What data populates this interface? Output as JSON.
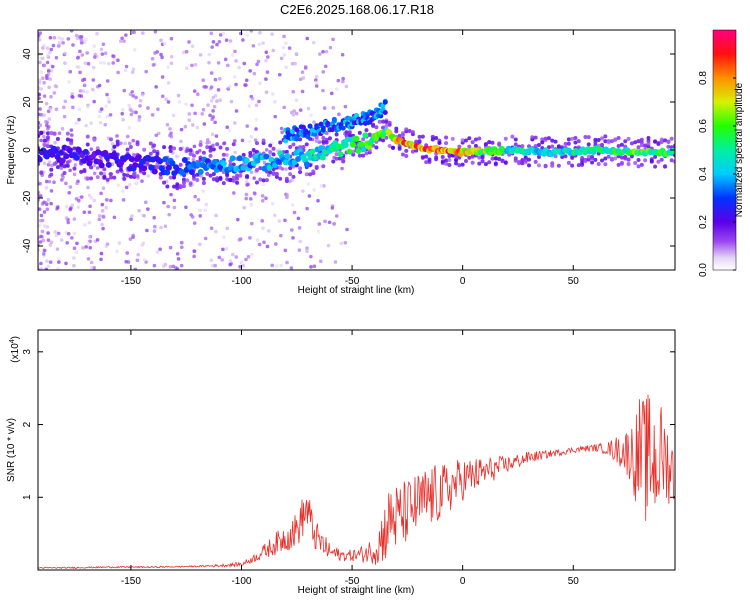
{
  "figure_title": "C2E6.2025.168.06.17.R18",
  "chart_data": [
    {
      "type": "heatmap",
      "title": "C2E6.2025.168.06.17.R18",
      "xlabel": "Height of straight line (km)",
      "ylabel": "Frequency (Hz)",
      "xlim": [
        -192,
        96
      ],
      "ylim": [
        -50,
        50
      ],
      "xticks": [
        -150,
        -100,
        -50,
        0,
        50
      ],
      "yticks": [
        -40,
        -20,
        0,
        20,
        40
      ],
      "grid": false,
      "colorbar": {
        "label": "Normalized spectral amplitude",
        "range": [
          0,
          1
        ],
        "ticks": [
          "0.0",
          "0.2",
          "0.4",
          "0.6",
          "0.8"
        ],
        "colormap": "rainbow (white-purple-blue-cyan-green-yellow-orange-red-magenta)"
      },
      "ridge": {
        "description": "dominant frequency vs height",
        "x": [
          -190,
          -170,
          -150,
          -130,
          -110,
          -90,
          -70,
          -55,
          -45,
          -38,
          -34,
          -30,
          -20,
          -10,
          0,
          20,
          40,
          60,
          80,
          94
        ],
        "y": [
          -1,
          -3,
          -5,
          -7,
          -6,
          -5,
          -3,
          1,
          3,
          6,
          8,
          4,
          1,
          0,
          -1,
          0,
          -1,
          0,
          -1,
          -1
        ],
        "amplitude": [
          0.25,
          0.22,
          0.25,
          0.3,
          0.35,
          0.4,
          0.45,
          0.5,
          0.55,
          0.6,
          0.65,
          0.8,
          0.9,
          0.85,
          0.8,
          0.5,
          0.45,
          0.5,
          0.6,
          0.55
        ]
      },
      "upper_branch": {
        "x": [
          -80,
          -70,
          -60,
          -50,
          -40,
          -35
        ],
        "y": [
          6,
          8,
          10,
          12,
          14,
          18
        ]
      }
    },
    {
      "type": "line",
      "xlabel": "Height of straight line (km)",
      "ylabel": "SNR (10 * v/v)",
      "y_multiplier_label": "(x10",
      "y_multiplier_exponent": "4",
      "y_multiplier_close": ")",
      "xlim": [
        -192,
        96
      ],
      "ylim": [
        0,
        3.3
      ],
      "xticks": [
        -150,
        -100,
        -50,
        0,
        50
      ],
      "yticks": [
        1,
        2,
        3
      ],
      "grid": false,
      "color": "#e8302a",
      "series": [
        {
          "x": [
            -192,
            -180,
            -160,
            -140,
            -120,
            -110,
            -100,
            -95,
            -90,
            -85,
            -80,
            -75,
            -72,
            -70,
            -68,
            -65,
            -60,
            -55,
            -50,
            -45,
            -40,
            -38,
            -35,
            -32,
            -30,
            -25,
            -20,
            -15,
            -10,
            -5,
            0,
            5,
            10,
            20,
            30,
            40,
            50,
            55,
            60,
            65,
            70,
            75,
            78,
            80,
            82,
            85,
            88,
            90,
            92,
            94,
            96
          ],
          "y": [
            0.03,
            0.03,
            0.04,
            0.04,
            0.05,
            0.06,
            0.08,
            0.15,
            0.25,
            0.35,
            0.45,
            0.55,
            0.75,
            0.85,
            0.55,
            0.4,
            0.25,
            0.2,
            0.2,
            0.22,
            0.28,
            0.35,
            0.55,
            0.75,
            0.7,
            0.8,
            0.9,
            1.0,
            1.05,
            1.15,
            1.25,
            1.3,
            1.35,
            1.45,
            1.55,
            1.6,
            1.65,
            1.67,
            1.68,
            1.67,
            1.65,
            1.62,
            1.55,
            1.6,
            1.5,
            1.55,
            1.45,
            1.6,
            1.5,
            1.4,
            1.3
          ],
          "noise": [
            0.01,
            0.01,
            0.01,
            0.01,
            0.01,
            0.02,
            0.03,
            0.05,
            0.1,
            0.15,
            0.2,
            0.25,
            0.3,
            0.3,
            0.25,
            0.2,
            0.12,
            0.08,
            0.08,
            0.12,
            0.2,
            0.3,
            0.45,
            0.5,
            0.5,
            0.45,
            0.45,
            0.45,
            0.4,
            0.35,
            0.3,
            0.25,
            0.2,
            0.12,
            0.08,
            0.05,
            0.04,
            0.04,
            0.05,
            0.08,
            0.2,
            0.35,
            0.6,
            0.8,
            0.9,
            0.9,
            0.8,
            0.7,
            0.6,
            0.5,
            0.5
          ]
        }
      ]
    }
  ]
}
